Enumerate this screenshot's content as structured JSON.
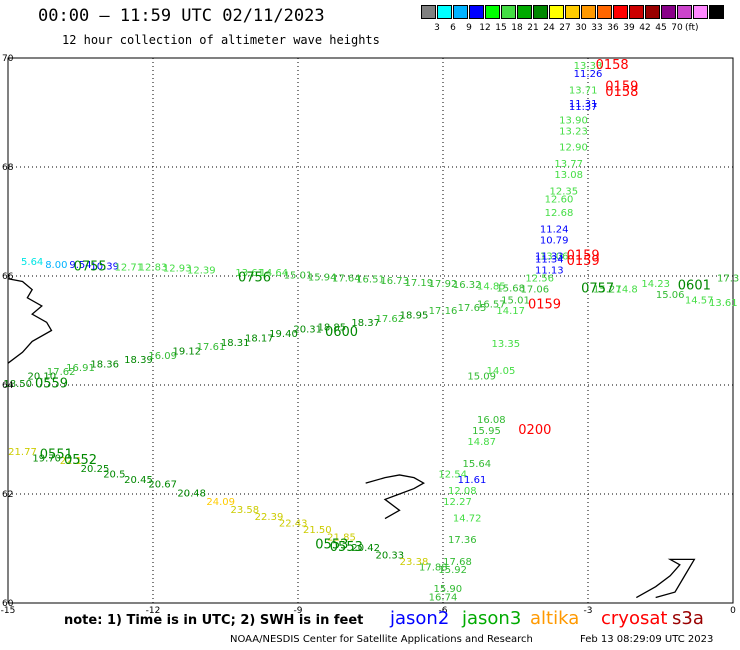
{
  "title": "00:00 – 11:59 UTC 02/11/2023",
  "subtitle": "12 hour collection of altimeter wave heights",
  "color_scale": {
    "colors": [
      "#808080",
      "#00ffff",
      "#00b2ff",
      "#0000ff",
      "#00ff00",
      "#44dd44",
      "#00aa00",
      "#008800",
      "#ffff00",
      "#ffcc00",
      "#ff9900",
      "#ff6600",
      "#ff0000",
      "#cc0000",
      "#990000",
      "#880088",
      "#cc44cc",
      "#ff88ff",
      "#000000"
    ],
    "labels": [
      "3",
      "6",
      "9",
      "12",
      "15",
      "18",
      "21",
      "24",
      "27",
      "30",
      "33",
      "36",
      "39",
      "42",
      "45",
      "70"
    ],
    "unit": "(ft)"
  },
  "map": {
    "lon_range": [
      -15,
      0
    ],
    "lat_range": [
      60,
      70
    ],
    "lon_ticks": [
      "-15",
      "-12",
      "-9",
      "-6",
      "-3",
      "0"
    ],
    "lat_ticks": [
      "70",
      "68",
      "66",
      "64",
      "62",
      "60"
    ]
  },
  "tracks": [
    {
      "satellite": "jason3",
      "times": [
        "0757",
        "0601"
      ],
      "points": [
        {
          "lon": -2.6,
          "lat": 65.7,
          "v": "15.27"
        },
        {
          "lon": -2.2,
          "lat": 65.7,
          "v": "14.8"
        },
        {
          "lon": -1.6,
          "lat": 65.8,
          "v": "14.23"
        },
        {
          "lon": -1.3,
          "lat": 65.6,
          "v": "15.06"
        },
        {
          "lon": -0.7,
          "lat": 65.5,
          "v": "14.57"
        },
        {
          "lon": -0.2,
          "lat": 65.45,
          "v": "13.61"
        },
        {
          "lon": -0.1,
          "lat": 65.9,
          "v": "17.3"
        }
      ]
    },
    {
      "satellite": "jason3",
      "times": [
        "0756"
      ],
      "points": [
        {
          "lon": -14.5,
          "lat": 66.2,
          "v": "5.64"
        },
        {
          "lon": -14.0,
          "lat": 66.15,
          "v": "8.00"
        },
        {
          "lon": -13.5,
          "lat": 66.15,
          "v": "9.54"
        },
        {
          "lon": -13.0,
          "lat": 66.12,
          "v": "10.39"
        },
        {
          "lon": -12.5,
          "lat": 66.1,
          "v": "12.71"
        },
        {
          "lon": -12.0,
          "lat": 66.1,
          "v": "12.83"
        },
        {
          "lon": -11.5,
          "lat": 66.08,
          "v": "12.93"
        },
        {
          "lon": -11.0,
          "lat": 66.05,
          "v": "12.39"
        },
        {
          "lon": -10.0,
          "lat": 66.0,
          "v": "13.61"
        },
        {
          "lon": -9.5,
          "lat": 66.0,
          "v": "14.64"
        },
        {
          "lon": -9.0,
          "lat": 65.95,
          "v": "15.01"
        },
        {
          "lon": -8.5,
          "lat": 65.92,
          "v": "15.94"
        },
        {
          "lon": -8.0,
          "lat": 65.9,
          "v": "17.64"
        },
        {
          "lon": -7.5,
          "lat": 65.88,
          "v": "16.51"
        },
        {
          "lon": -7.0,
          "lat": 65.85,
          "v": "16.73"
        },
        {
          "lon": -6.5,
          "lat": 65.82,
          "v": "17.19"
        },
        {
          "lon": -6.0,
          "lat": 65.8,
          "v": "17.92"
        },
        {
          "lon": -5.5,
          "lat": 65.78,
          "v": "16.32"
        },
        {
          "lon": -5.0,
          "lat": 65.75,
          "v": "14.85"
        },
        {
          "lon": -4.6,
          "lat": 65.72,
          "v": "15.68"
        },
        {
          "lon": -4.1,
          "lat": 65.7,
          "v": "17.06"
        }
      ]
    },
    {
      "satellite": "jason3",
      "times": [
        "0600"
      ],
      "points": [
        {
          "lon": -14.3,
          "lat": 64.1,
          "v": "20.10"
        },
        {
          "lon": -13.9,
          "lat": 64.18,
          "v": "17.62"
        },
        {
          "lon": -13.5,
          "lat": 64.26,
          "v": "16.91"
        },
        {
          "lon": -13.0,
          "lat": 64.32,
          "v": "18.36"
        },
        {
          "lon": -12.3,
          "lat": 64.4,
          "v": "18.39"
        },
        {
          "lon": -11.8,
          "lat": 64.48,
          "v": "16.09"
        },
        {
          "lon": -11.3,
          "lat": 64.56,
          "v": "19.12"
        },
        {
          "lon": -10.8,
          "lat": 64.64,
          "v": "17.61"
        },
        {
          "lon": -10.3,
          "lat": 64.72,
          "v": "18.31"
        },
        {
          "lon": -9.8,
          "lat": 64.8,
          "v": "18.17"
        },
        {
          "lon": -9.3,
          "lat": 64.88,
          "v": "19.40"
        },
        {
          "lon": -8.8,
          "lat": 64.96,
          "v": "20.31"
        },
        {
          "lon": -8.3,
          "lat": 65.0,
          "v": "18.85"
        },
        {
          "lon": -7.6,
          "lat": 65.08,
          "v": "18.37"
        },
        {
          "lon": -7.1,
          "lat": 65.16,
          "v": "17.62"
        },
        {
          "lon": -6.6,
          "lat": 65.22,
          "v": "18.95"
        },
        {
          "lon": -6.0,
          "lat": 65.3,
          "v": "17.16"
        },
        {
          "lon": -5.4,
          "lat": 65.36,
          "v": "17.65"
        },
        {
          "lon": -5.0,
          "lat": 65.42,
          "v": "16.57"
        },
        {
          "lon": -4.5,
          "lat": 65.5,
          "v": "15.01"
        }
      ]
    },
    {
      "satellite": "jason3",
      "times": [
        "0559"
      ],
      "points": [
        {
          "lon": -14.8,
          "lat": 63.96,
          "v": "18.50"
        }
      ]
    },
    {
      "satellite": "jason3",
      "times": [
        "0552",
        "0553"
      ],
      "points": [
        {
          "lon": -14.7,
          "lat": 62.72,
          "v": "21.77"
        },
        {
          "lon": -14.2,
          "lat": 62.6,
          "v": "19.70"
        },
        {
          "lon": -13.7,
          "lat": 62.55,
          "v": "22.1"
        },
        {
          "lon": -13.2,
          "lat": 62.4,
          "v": "20.25"
        },
        {
          "lon": -12.8,
          "lat": 62.3,
          "v": "20.5"
        },
        {
          "lon": -12.3,
          "lat": 62.2,
          "v": "20.45"
        },
        {
          "lon": -11.8,
          "lat": 62.12,
          "v": "20.67"
        },
        {
          "lon": -11.2,
          "lat": 61.95,
          "v": "20.48"
        },
        {
          "lon": -10.6,
          "lat": 61.8,
          "v": "24.09"
        },
        {
          "lon": -10.1,
          "lat": 61.65,
          "v": "23.58"
        },
        {
          "lon": -9.6,
          "lat": 61.52,
          "v": "22.39"
        },
        {
          "lon": -9.1,
          "lat": 61.4,
          "v": "22.43"
        },
        {
          "lon": -8.6,
          "lat": 61.28,
          "v": "21.50"
        },
        {
          "lon": -8.1,
          "lat": 61.15,
          "v": "21.85"
        },
        {
          "lon": -7.6,
          "lat": 60.95,
          "v": "20.42"
        },
        {
          "lon": -7.1,
          "lat": 60.82,
          "v": "20.33"
        },
        {
          "lon": -6.6,
          "lat": 60.7,
          "v": "23.38"
        },
        {
          "lon": -6.2,
          "lat": 60.6,
          "v": "17.88"
        }
      ]
    },
    {
      "satellite": "altika",
      "times": [
        "0200"
      ],
      "points": [
        {
          "lon": -5.8,
          "lat": 62.3,
          "v": "12.54"
        },
        {
          "lon": -5.6,
          "lat": 62.0,
          "v": "12.08"
        },
        {
          "lon": -5.7,
          "lat": 61.8,
          "v": "12.27"
        },
        {
          "lon": -5.5,
          "lat": 61.5,
          "v": "14.72"
        },
        {
          "lon": -5.6,
          "lat": 61.1,
          "v": "17.36"
        },
        {
          "lon": -5.7,
          "lat": 60.7,
          "v": "17.68"
        },
        {
          "lon": -5.8,
          "lat": 60.55,
          "v": "15.92"
        },
        {
          "lon": -5.9,
          "lat": 60.2,
          "v": "15.90"
        },
        {
          "lon": -6.0,
          "lat": 60.05,
          "v": "16.74"
        },
        {
          "lon": -5.0,
          "lat": 63.3,
          "v": "16.08"
        },
        {
          "lon": -5.1,
          "lat": 63.1,
          "v": "15.95"
        },
        {
          "lon": -5.2,
          "lat": 62.9,
          "v": "14.87"
        },
        {
          "lon": -5.3,
          "lat": 62.5,
          "v": "15.64"
        },
        {
          "lon": -5.2,
          "lat": 64.1,
          "v": "15.09"
        },
        {
          "lon": -4.6,
          "lat": 65.3,
          "v": "14.17"
        },
        {
          "lon": -4.7,
          "lat": 64.7,
          "v": "13.35"
        },
        {
          "lon": -4.8,
          "lat": 64.2,
          "v": "14.05"
        }
      ]
    },
    {
      "satellite": "jason3",
      "times": [
        "0158",
        "0159"
      ],
      "points": [
        {
          "lon": -3.0,
          "lat": 69.8,
          "v": "13.33"
        },
        {
          "lon": -3.1,
          "lat": 69.35,
          "v": "13.71"
        },
        {
          "lon": -3.3,
          "lat": 68.8,
          "v": "13.90"
        },
        {
          "lon": -3.3,
          "lat": 68.6,
          "v": "13.23"
        },
        {
          "lon": -3.3,
          "lat": 68.3,
          "v": "12.90"
        },
        {
          "lon": -3.4,
          "lat": 68.0,
          "v": "13.77"
        },
        {
          "lon": -3.4,
          "lat": 67.8,
          "v": "13.08"
        },
        {
          "lon": -3.5,
          "lat": 67.5,
          "v": "12.35"
        },
        {
          "lon": -3.6,
          "lat": 67.35,
          "v": "12.60"
        },
        {
          "lon": -3.6,
          "lat": 67.1,
          "v": "12.68"
        },
        {
          "lon": -3.7,
          "lat": 66.3,
          "v": "13.06"
        },
        {
          "lon": -4.0,
          "lat": 65.9,
          "v": "12.56"
        }
      ]
    }
  ],
  "blue_points": [
    {
      "lon": -3.0,
      "lat": 69.65,
      "v": "11.26"
    },
    {
      "lon": -3.1,
      "lat": 69.1,
      "v": "11.31"
    },
    {
      "lon": -3.1,
      "lat": 69.05,
      "v": "11.37"
    },
    {
      "lon": -3.7,
      "lat": 66.8,
      "v": "11.24"
    },
    {
      "lon": -3.7,
      "lat": 66.6,
      "v": "10.79"
    },
    {
      "lon": -3.8,
      "lat": 66.3,
      "v": "11.33"
    },
    {
      "lon": -3.8,
      "lat": 66.25,
      "v": "11.34"
    },
    {
      "lon": -3.8,
      "lat": 66.05,
      "v": "11.13"
    },
    {
      "lon": -5.4,
      "lat": 62.2,
      "v": "11.61"
    }
  ],
  "labels_time": [
    {
      "lon": -2.5,
      "lat": 69.8,
      "t": "0158",
      "c": "#ff0000"
    },
    {
      "lon": -2.3,
      "lat": 69.4,
      "t": "0159",
      "c": "#ff0000"
    },
    {
      "lon": -2.3,
      "lat": 69.3,
      "t": "0158",
      "c": "#ff0000"
    },
    {
      "lon": -3.1,
      "lat": 66.3,
      "t": "0159",
      "c": "#ff0000"
    },
    {
      "lon": -3.1,
      "lat": 66.2,
      "t": "0159",
      "c": "#ff0000"
    },
    {
      "lon": -3.9,
      "lat": 65.4,
      "t": "0159",
      "c": "#ff0000"
    },
    {
      "lon": -4.1,
      "lat": 63.1,
      "t": "0200",
      "c": "#ff0000"
    },
    {
      "lon": -2.8,
      "lat": 65.7,
      "t": "0757",
      "c": "#008800"
    },
    {
      "lon": -0.8,
      "lat": 65.75,
      "t": "0601",
      "c": "#008800"
    },
    {
      "lon": -13.3,
      "lat": 66.1,
      "t": "0755",
      "c": "#008800"
    },
    {
      "lon": -9.9,
      "lat": 65.9,
      "t": "0756",
      "c": "#008800"
    },
    {
      "lon": -8.1,
      "lat": 64.9,
      "t": "0600",
      "c": "#008800"
    },
    {
      "lon": -14.1,
      "lat": 63.95,
      "t": "0559",
      "c": "#008800"
    },
    {
      "lon": -14.0,
      "lat": 62.65,
      "t": "0551",
      "c": "#008800"
    },
    {
      "lon": -13.5,
      "lat": 62.55,
      "t": "0552",
      "c": "#008800"
    },
    {
      "lon": -8.3,
      "lat": 61.0,
      "t": "0553",
      "c": "#008800"
    },
    {
      "lon": -8.0,
      "lat": 60.95,
      "t": "0553",
      "c": "#008800"
    }
  ],
  "note": "note: 1) Time is in UTC; 2) SWH is in feet",
  "legend": [
    {
      "name": "jason2",
      "color": "#0000ff"
    },
    {
      "name": "jason3",
      "color": "#00aa00"
    },
    {
      "name": "altika",
      "color": "#ff9900"
    },
    {
      "name": "cryosat",
      "color": "#ff0000"
    },
    {
      "name": "s3a",
      "color": "#990000"
    }
  ],
  "credit": "NOAA/NESDIS Center for Satellite Applications and Research",
  "stamp": "Feb 13 08:29:09 UTC 2023"
}
